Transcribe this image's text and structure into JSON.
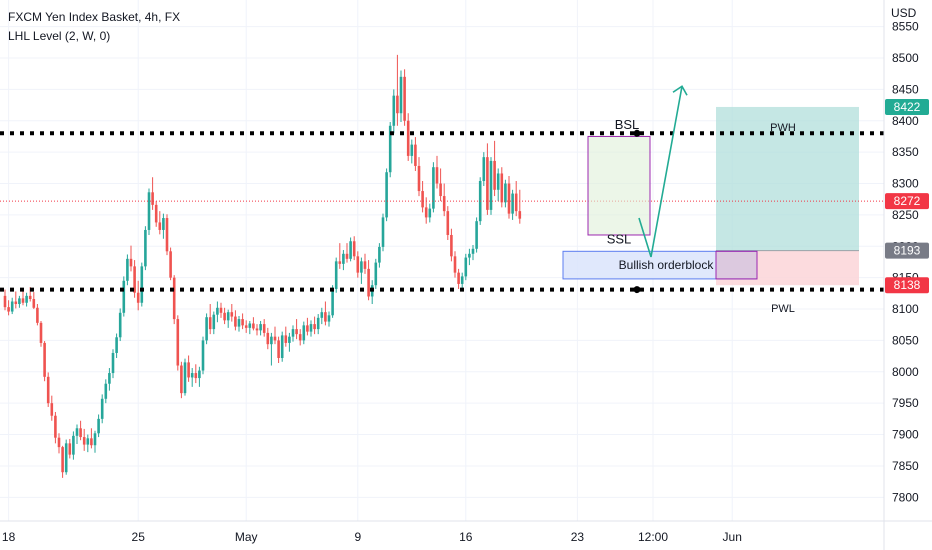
{
  "chart_data": {
    "type": "candlestick",
    "title": "FXCM Yen Index Basket, 4h, FX",
    "indicator": "LHL Level (2, W, 0)",
    "currency": "USD",
    "ylim": [
      7770,
      8580
    ],
    "y_ticks": [
      7800,
      7850,
      7900,
      7950,
      8000,
      8050,
      8100,
      8150,
      8200,
      8250,
      8300,
      8350,
      8400,
      8450,
      8500,
      8550
    ],
    "x_ticks": [
      {
        "label": "18",
        "bar": 1
      },
      {
        "label": "25",
        "bar": 37
      },
      {
        "label": "May",
        "bar": 67
      },
      {
        "label": "9",
        "bar": 98
      },
      {
        "label": "16",
        "bar": 128
      },
      {
        "label": "23",
        "bar": 159
      },
      {
        "label": "12:00",
        "bar": 180
      },
      {
        "label": "Jun",
        "bar": 202
      }
    ],
    "candles": [
      [
        8121,
        8131,
        8098,
        8103
      ],
      [
        8103,
        8114,
        8090,
        8096
      ],
      [
        8096,
        8118,
        8092,
        8112
      ],
      [
        8112,
        8128,
        8101,
        8108
      ],
      [
        8108,
        8121,
        8102,
        8117
      ],
      [
        8117,
        8129,
        8106,
        8110
      ],
      [
        8110,
        8126,
        8104,
        8121
      ],
      [
        8121,
        8135,
        8112,
        8116
      ],
      [
        8116,
        8127,
        8100,
        8102
      ],
      [
        8102,
        8108,
        8074,
        8078
      ],
      [
        8078,
        8081,
        8040,
        8046
      ],
      [
        8046,
        8049,
        7985,
        7992
      ],
      [
        7992,
        7999,
        7944,
        7950
      ],
      [
        7950,
        7962,
        7922,
        7930
      ],
      [
        7930,
        7936,
        7886,
        7895
      ],
      [
        7895,
        7902,
        7870,
        7880
      ],
      [
        7880,
        7882,
        7831,
        7840
      ],
      [
        7840,
        7892,
        7836,
        7886
      ],
      [
        7886,
        7893,
        7862,
        7868
      ],
      [
        7868,
        7905,
        7860,
        7898
      ],
      [
        7898,
        7916,
        7885,
        7910
      ],
      [
        7910,
        7922,
        7891,
        7896
      ],
      [
        7896,
        7909,
        7874,
        7884
      ],
      [
        7884,
        7900,
        7872,
        7894
      ],
      [
        7894,
        7910,
        7878,
        7883
      ],
      [
        7883,
        7906,
        7871,
        7902
      ],
      [
        7902,
        7932,
        7896,
        7925
      ],
      [
        7925,
        7964,
        7918,
        7957
      ],
      [
        7957,
        7988,
        7950,
        7981
      ],
      [
        7981,
        8006,
        7970,
        7998
      ],
      [
        7998,
        8036,
        7990,
        8030
      ],
      [
        8030,
        8061,
        8022,
        8055
      ],
      [
        8055,
        8101,
        8049,
        8094
      ],
      [
        8094,
        8152,
        8088,
        8145
      ],
      [
        8145,
        8187,
        8138,
        8180
      ],
      [
        8180,
        8201,
        8160,
        8168
      ],
      [
        8168,
        8178,
        8118,
        8126
      ],
      [
        8126,
        8145,
        8098,
        8110
      ],
      [
        8110,
        8174,
        8104,
        8168
      ],
      [
        8168,
        8232,
        8162,
        8226
      ],
      [
        8226,
        8292,
        8218,
        8286
      ],
      [
        8286,
        8310,
        8258,
        8266
      ],
      [
        8266,
        8272,
        8231,
        8238
      ],
      [
        8238,
        8256,
        8219,
        8226
      ],
      [
        8226,
        8252,
        8212,
        8245
      ],
      [
        8245,
        8251,
        8186,
        8192
      ],
      [
        8192,
        8198,
        8146,
        8150
      ],
      [
        8150,
        8154,
        8076,
        8084
      ],
      [
        8084,
        8090,
        8002,
        8010
      ],
      [
        8010,
        8016,
        7958,
        7966
      ],
      [
        7966,
        8021,
        7962,
        8015
      ],
      [
        8015,
        8026,
        7984,
        7991
      ],
      [
        7991,
        8006,
        7976,
        7998
      ],
      [
        7998,
        8012,
        7982,
        7990
      ],
      [
        7990,
        8008,
        7976,
        8002
      ],
      [
        8002,
        8056,
        7996,
        8050
      ],
      [
        8050,
        8093,
        8044,
        8087
      ],
      [
        8087,
        8108,
        8060,
        8068
      ],
      [
        8068,
        8096,
        8060,
        8091
      ],
      [
        8091,
        8112,
        8079,
        8102
      ],
      [
        8102,
        8110,
        8086,
        8094
      ],
      [
        8094,
        8102,
        8076,
        8082
      ],
      [
        8082,
        8099,
        8070,
        8095
      ],
      [
        8095,
        8108,
        8080,
        8088
      ],
      [
        8088,
        8098,
        8066,
        8072
      ],
      [
        8072,
        8089,
        8064,
        8084
      ],
      [
        8084,
        8093,
        8068,
        8074
      ],
      [
        8074,
        8082,
        8062,
        8070
      ],
      [
        8070,
        8081,
        8060,
        8077
      ],
      [
        8077,
        8087,
        8066,
        8069
      ],
      [
        8069,
        8076,
        8058,
        8066
      ],
      [
        8066,
        8081,
        8058,
        8076
      ],
      [
        8076,
        8084,
        8056,
        8062
      ],
      [
        8062,
        8070,
        8036,
        8044
      ],
      [
        8044,
        8062,
        8010,
        8056
      ],
      [
        8056,
        8072,
        8044,
        8050
      ],
      [
        8050,
        8056,
        8014,
        8022
      ],
      [
        8022,
        8064,
        8016,
        8058
      ],
      [
        8058,
        8072,
        8040,
        8046
      ],
      [
        8046,
        8062,
        8032,
        8056
      ],
      [
        8056,
        8074,
        8048,
        8068
      ],
      [
        8068,
        8084,
        8052,
        8060
      ],
      [
        8060,
        8068,
        8042,
        8050
      ],
      [
        8050,
        8080,
        8044,
        8074
      ],
      [
        8074,
        8086,
        8058,
        8064
      ],
      [
        8064,
        8082,
        8056,
        8076
      ],
      [
        8076,
        8088,
        8060,
        8068
      ],
      [
        8068,
        8092,
        8060,
        8086
      ],
      [
        8086,
        8102,
        8076,
        8095
      ],
      [
        8095,
        8112,
        8074,
        8080
      ],
      [
        8080,
        8096,
        8072,
        8090
      ],
      [
        8090,
        8138,
        8086,
        8132
      ],
      [
        8132,
        8182,
        8126,
        8176
      ],
      [
        8176,
        8205,
        8164,
        8172
      ],
      [
        8172,
        8194,
        8162,
        8188
      ],
      [
        8188,
        8205,
        8174,
        8180
      ],
      [
        8180,
        8214,
        8176,
        8208
      ],
      [
        8208,
        8216,
        8178,
        8184
      ],
      [
        8184,
        8192,
        8150,
        8158
      ],
      [
        8158,
        8182,
        8140,
        8176
      ],
      [
        8176,
        8188,
        8156,
        8164
      ],
      [
        8164,
        8178,
        8114,
        8120
      ],
      [
        8120,
        8146,
        8108,
        8138
      ],
      [
        8138,
        8180,
        8132,
        8174
      ],
      [
        8174,
        8205,
        8166,
        8199
      ],
      [
        8199,
        8252,
        8192,
        8246
      ],
      [
        8246,
        8324,
        8240,
        8318
      ],
      [
        8318,
        8398,
        8310,
        8392
      ],
      [
        8392,
        8450,
        8380,
        8440
      ],
      [
        8440,
        8505,
        8392,
        8412
      ],
      [
        8412,
        8480,
        8398,
        8470
      ],
      [
        8470,
        8482,
        8392,
        8400
      ],
      [
        8400,
        8412,
        8336,
        8344
      ],
      [
        8344,
        8370,
        8332,
        8362
      ],
      [
        8362,
        8374,
        8320,
        8328
      ],
      [
        8328,
        8342,
        8280,
        8288
      ],
      [
        8288,
        8304,
        8254,
        8262
      ],
      [
        8262,
        8278,
        8236,
        8246
      ],
      [
        8246,
        8268,
        8238,
        8260
      ],
      [
        8260,
        8334,
        8254,
        8326
      ],
      [
        8326,
        8344,
        8292,
        8300
      ],
      [
        8300,
        8324,
        8272,
        8280
      ],
      [
        8280,
        8300,
        8248,
        8256
      ],
      [
        8256,
        8264,
        8210,
        8218
      ],
      [
        8218,
        8228,
        8176,
        8184
      ],
      [
        8184,
        8192,
        8150,
        8158
      ],
      [
        8158,
        8164,
        8132,
        8140
      ],
      [
        8140,
        8158,
        8130,
        8152
      ],
      [
        8152,
        8188,
        8146,
        8182
      ],
      [
        8182,
        8196,
        8170,
        8188
      ],
      [
        8188,
        8202,
        8178,
        8196
      ],
      [
        8196,
        8246,
        8190,
        8240
      ],
      [
        8240,
        8310,
        8234,
        8304
      ],
      [
        8304,
        8350,
        8296,
        8342
      ],
      [
        8342,
        8364,
        8250,
        8258
      ],
      [
        8258,
        8342,
        8250,
        8336
      ],
      [
        8336,
        8368,
        8280,
        8290
      ],
      [
        8290,
        8324,
        8272,
        8316
      ],
      [
        8316,
        8326,
        8262,
        8270
      ],
      [
        8270,
        8306,
        8262,
        8300
      ],
      [
        8300,
        8312,
        8244,
        8252
      ],
      [
        8252,
        8290,
        8242,
        8284
      ],
      [
        8284,
        8304,
        8248,
        8256
      ],
      [
        8256,
        8290,
        8236,
        8244
      ]
    ],
    "horizontal_lines": [
      {
        "name": "upper-level",
        "value": 8380,
        "style": "dotted"
      },
      {
        "name": "lower-level",
        "value": 8131,
        "style": "dotted"
      },
      {
        "name": "current-price",
        "value": 8272,
        "style": "thin-red"
      }
    ],
    "price_badges": [
      {
        "label": "8422",
        "value": 8422,
        "color": "#22ab94"
      },
      {
        "label": "8272",
        "value": 8272,
        "color": "#f23645"
      },
      {
        "label": "8193",
        "value": 8193,
        "color": "#787b86"
      },
      {
        "label": "8138",
        "value": 8138,
        "color": "#f23645"
      }
    ],
    "annotations": {
      "bsl_label": "BSL",
      "ssl_label": "SSL",
      "orderblock_label": "Bullish orderblock",
      "pwh_label": "PWH",
      "pwl_label": "PWL"
    },
    "colors": {
      "up": "#26a69a",
      "down": "#ef5350",
      "target_zone": "#b2dfdb",
      "stop_zone": "#fcd5d8",
      "orderblock_fill": "#dbe4fb",
      "orderblock_border": "#5b7cf0",
      "range_box_fill": "#dff0d8",
      "range_box_border": "#9c27b0",
      "arrow": "#22ab94"
    }
  }
}
